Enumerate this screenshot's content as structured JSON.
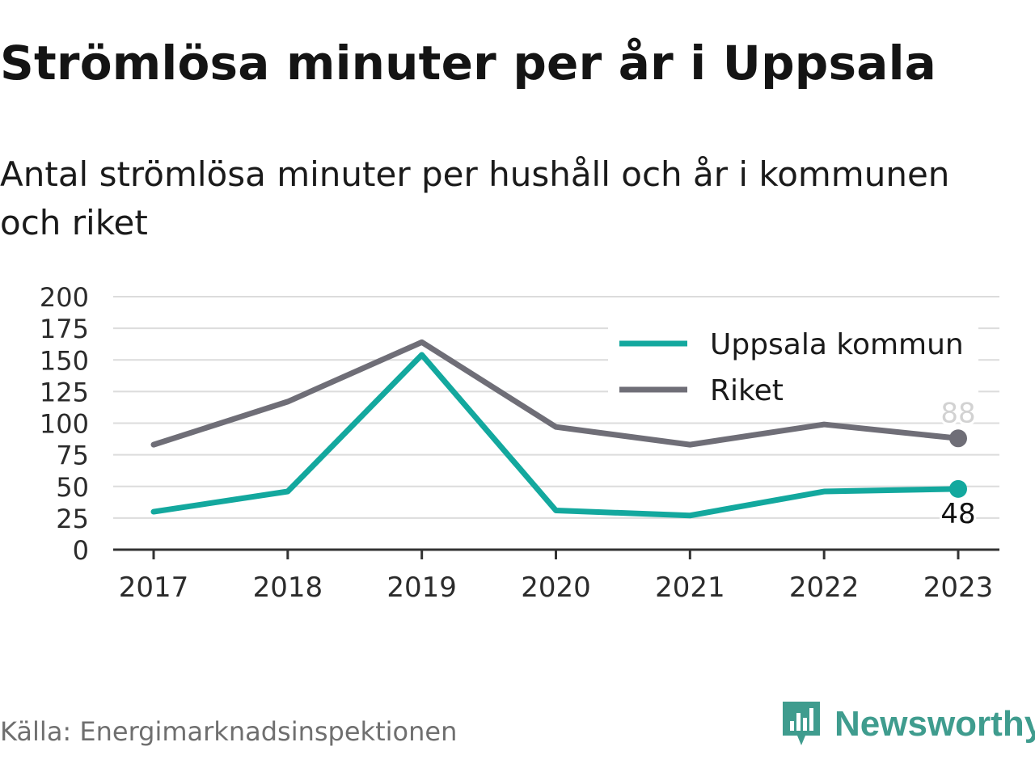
{
  "header": {
    "title": "Strömlösa minuter per år i Uppsala",
    "subtitle": "Antal strömlösa minuter per hushåll och år i kommunen och riket"
  },
  "footer": {
    "source": "Källa: Energimarknadsinspektionen",
    "brand": "Newsworthy"
  },
  "colors": {
    "uppsala": "#13a89e",
    "riket": "#6f6e77",
    "grid": "#dcdcdc",
    "axis": "#333333",
    "brand": "#3f9c8e"
  },
  "chart_data": {
    "type": "line",
    "x": [
      "2017",
      "2018",
      "2019",
      "2020",
      "2021",
      "2022",
      "2023"
    ],
    "series": [
      {
        "name": "Uppsala kommun",
        "values": [
          30,
          46,
          154,
          31,
          27,
          46,
          48
        ],
        "end_label": "48"
      },
      {
        "name": "Riket",
        "values": [
          83,
          117,
          164,
          97,
          83,
          99,
          88
        ],
        "end_label": "88"
      }
    ],
    "y_ticks": [
      0,
      25,
      50,
      75,
      100,
      125,
      150,
      175,
      200
    ],
    "ylim": [
      0,
      200
    ],
    "grid": true,
    "legend_position": "top-right"
  }
}
